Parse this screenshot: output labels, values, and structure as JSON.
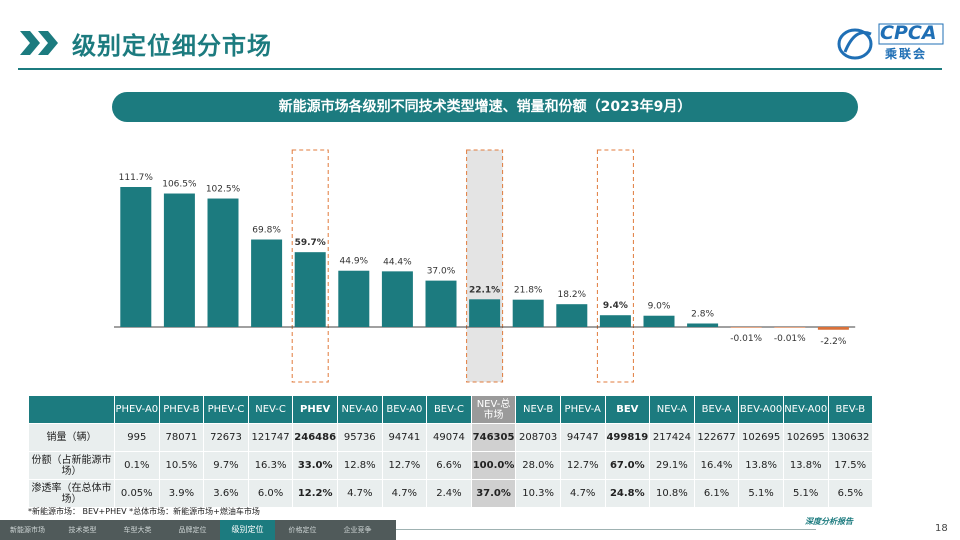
{
  "header": {
    "title": "级别定位细分市场",
    "logo_text": "CPCA",
    "logo_sub": "乘联会"
  },
  "banner": "新能源市场各级别不同技术类型增速、销量和份额（2023年9月）",
  "colors": {
    "accent": "#1c7b7f",
    "negative": "#d9713a",
    "highlight_box": "#e07b3c",
    "highlight_fill": "#d9d9d9"
  },
  "chart_data": {
    "type": "bar",
    "categories": [
      "PHEV-A0",
      "PHEV-B",
      "PHEV-C",
      "NEV-C",
      "PHEV",
      "NEV-A0",
      "BEV-A0",
      "BEV-C",
      "NEV-总市场",
      "NEV-B",
      "PHEV-A",
      "BEV",
      "NEV-A",
      "BEV-A",
      "BEV-A00",
      "NEV-A00",
      "BEV-B"
    ],
    "series": [
      {
        "values": [
          111.7,
          106.5,
          102.5,
          69.8,
          59.7,
          44.9,
          44.4,
          37.0,
          22.1,
          21.8,
          18.2,
          9.4,
          9.0,
          2.8,
          -0.01,
          -0.01,
          -2.2
        ]
      }
    ],
    "value_labels": [
      "111.7%",
      "106.5%",
      "102.5%",
      "69.8%",
      "59.7%",
      "44.9%",
      "44.4%",
      "37.0%",
      "22.1%",
      "21.8%",
      "18.2%",
      "9.4%",
      "9.0%",
      "2.8%",
      "-0.01%",
      "-0.01%",
      "-2.2%"
    ],
    "highlighted": [
      "PHEV",
      "NEV-总市场",
      "BEV"
    ],
    "xlabel": "",
    "ylabel": "",
    "ylim": [
      -5,
      120
    ],
    "grid": false
  },
  "table": {
    "columns": [
      "PHEV-A0",
      "PHEV-B",
      "PHEV-C",
      "NEV-C",
      "PHEV",
      "NEV-A0",
      "BEV-A0",
      "BEV-C",
      "NEV-总市场",
      "NEV-B",
      "PHEV-A",
      "BEV",
      "NEV-A",
      "BEV-A",
      "BEV-A00",
      "NEV-A00",
      "BEV-B"
    ],
    "rows": [
      {
        "label": "销量（辆）",
        "values": [
          "995",
          "78071",
          "72673",
          "121747",
          "246486",
          "95736",
          "94741",
          "49074",
          "746305",
          "208703",
          "94747",
          "499819",
          "217424",
          "122677",
          "102695",
          "102695",
          "130632"
        ]
      },
      {
        "label": "份额（占新能源市场）",
        "values": [
          "0.1%",
          "10.5%",
          "9.7%",
          "16.3%",
          "33.0%",
          "12.8%",
          "12.7%",
          "6.6%",
          "100.0%",
          "28.0%",
          "12.7%",
          "67.0%",
          "29.1%",
          "16.4%",
          "13.8%",
          "13.8%",
          "17.5%"
        ]
      },
      {
        "label": "渗透率（在总体市场）",
        "values": [
          "0.05%",
          "3.9%",
          "3.6%",
          "6.0%",
          "12.2%",
          "4.7%",
          "4.7%",
          "2.4%",
          "37.0%",
          "10.3%",
          "4.7%",
          "24.8%",
          "10.8%",
          "6.1%",
          "5.1%",
          "5.1%",
          "6.5%"
        ]
      }
    ]
  },
  "note": "*新能源市场： BEV+PHEV    *总体市场：新能源市场+燃油车市场",
  "footer": {
    "tabs": [
      "新能源市场",
      "技术类型",
      "车型大类",
      "品牌定位",
      "级别定位",
      "价格定位",
      "企业竞争"
    ],
    "active_tab": "级别定位",
    "tagline": "深度分析报告",
    "page_number": "18"
  }
}
